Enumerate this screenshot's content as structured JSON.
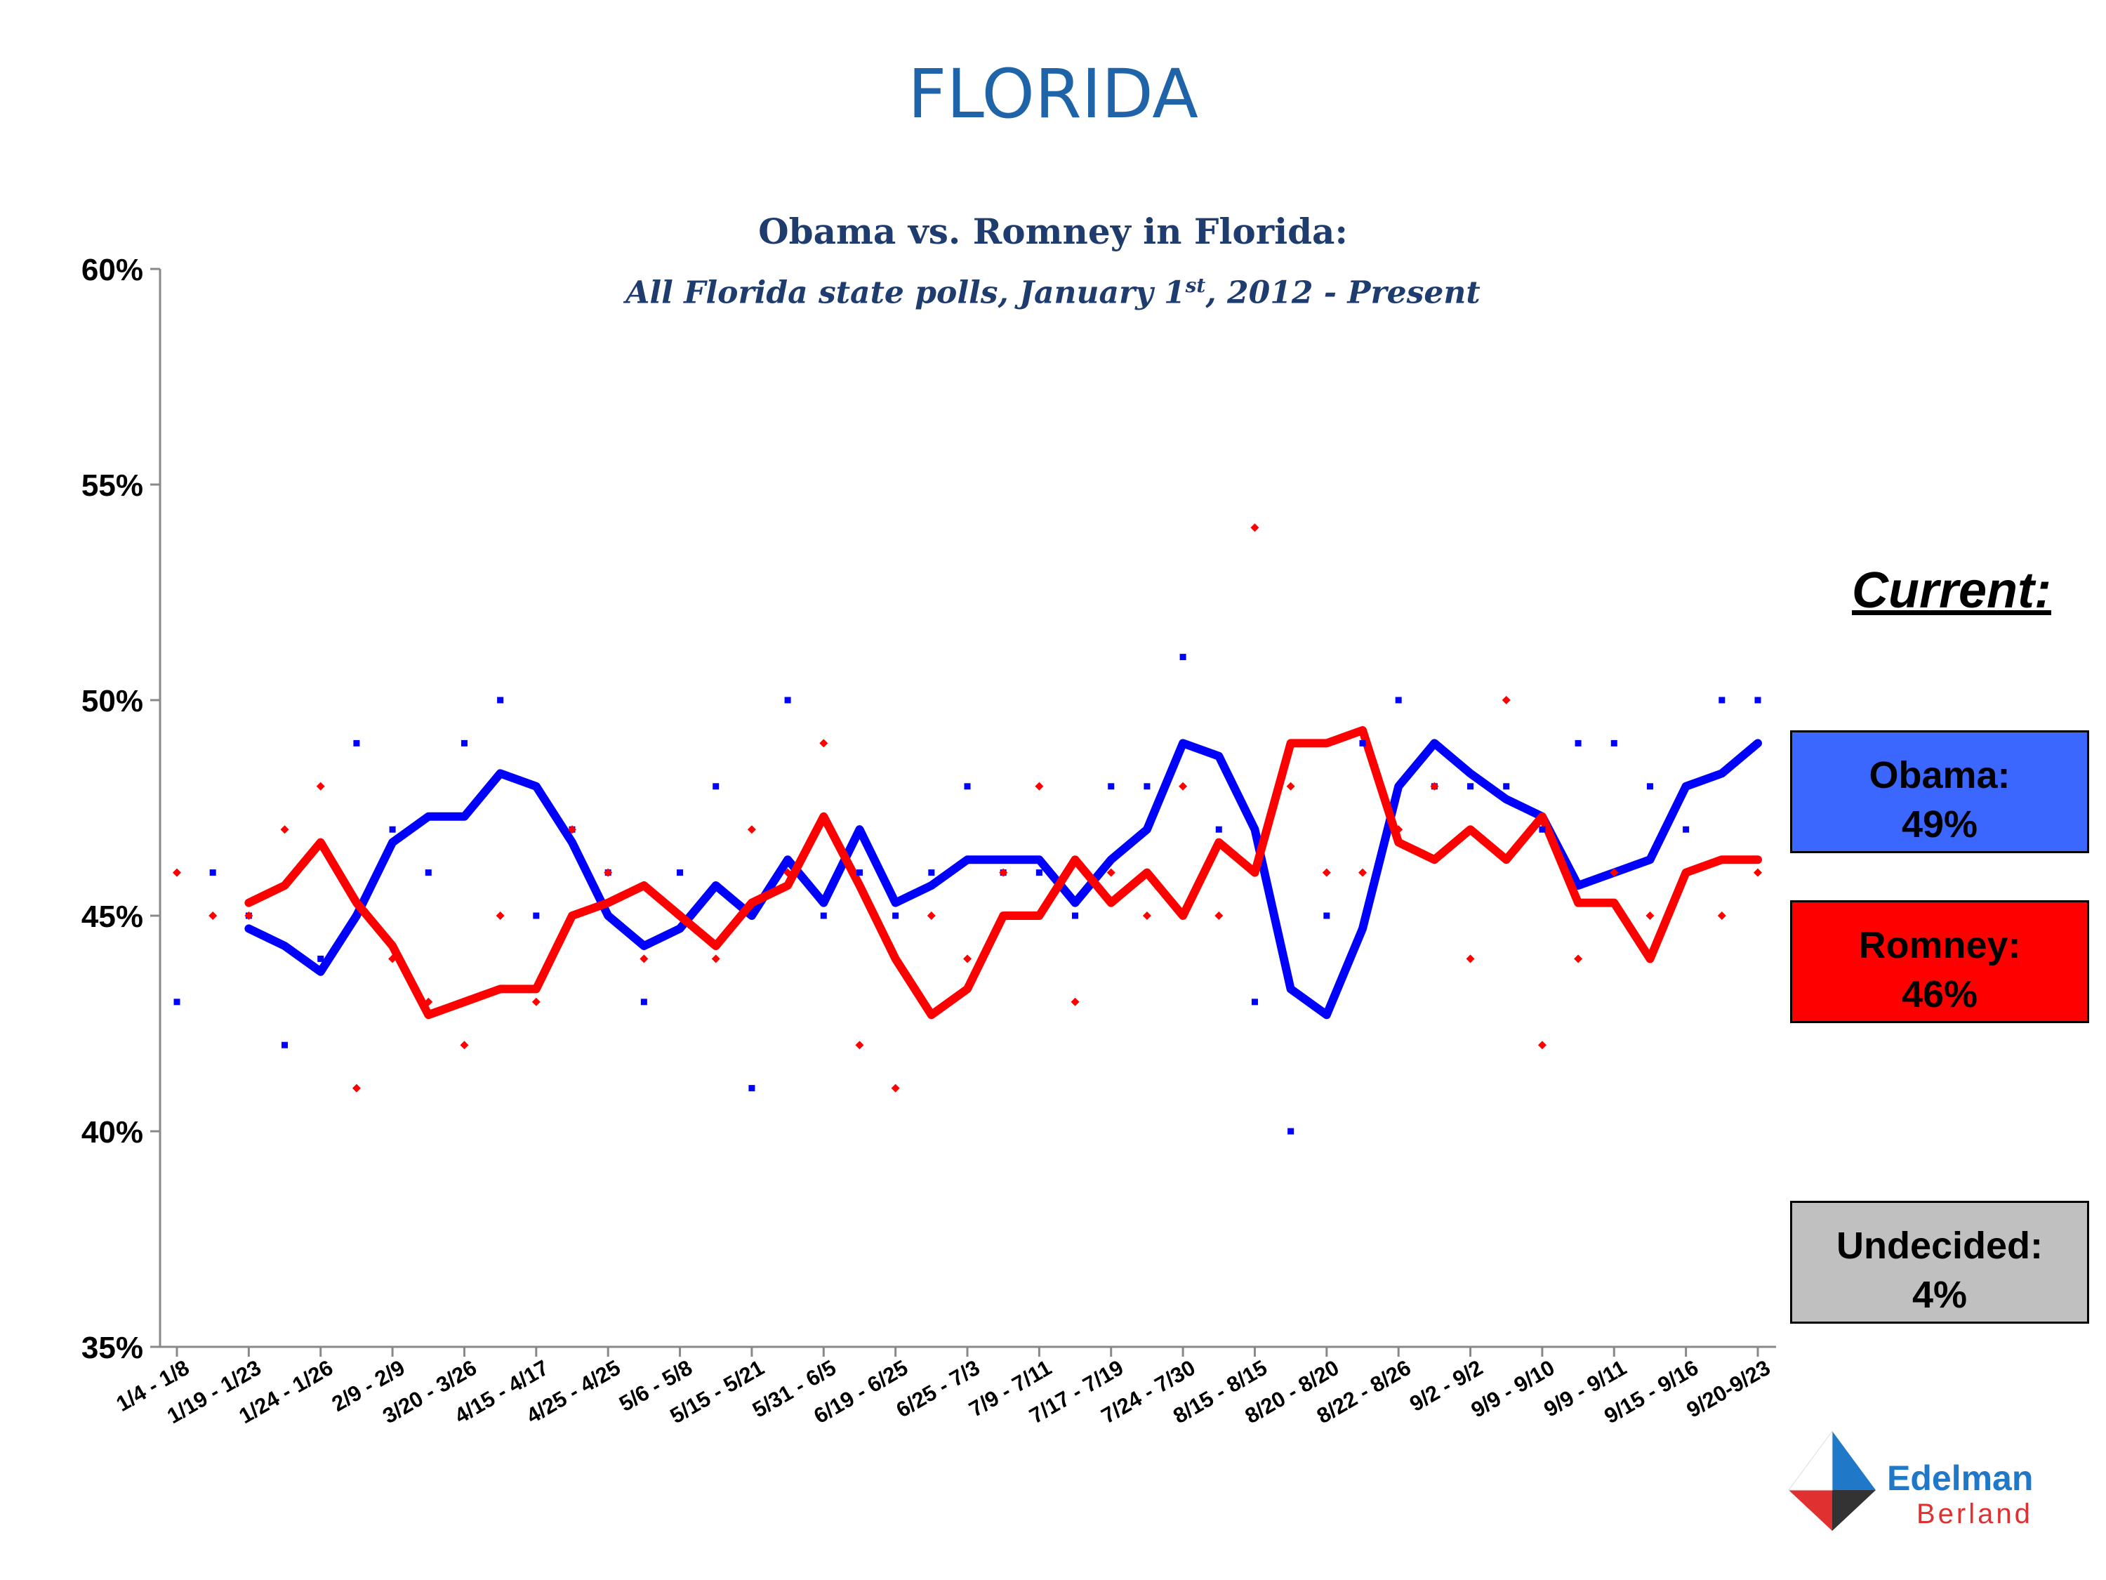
{
  "header": {
    "title": "FLORIDA"
  },
  "chart_data": {
    "type": "line",
    "title": "Obama vs. Romney in Florida:",
    "subtitle_before_sup": "All Florida state polls, January 1",
    "subtitle_sup": "st",
    "subtitle_after_sup": ", 2012 - Present",
    "ylim": [
      35,
      60
    ],
    "yticks": [
      35,
      40,
      45,
      50,
      55,
      60
    ],
    "ytick_labels": [
      "35%",
      "40%",
      "45%",
      "50%",
      "55%",
      "60%"
    ],
    "x_tick_labels": [
      "1/4 - 1/8",
      "1/19 - 1/23",
      "1/24 - 1/26",
      "2/9 - 2/9",
      "3/20 - 3/26",
      "4/15 - 4/17",
      "4/25 - 4/25",
      "5/6 - 5/8",
      "5/15 - 5/21",
      "5/31 - 6/5",
      "6/19 - 6/25",
      "6/25 - 7/3",
      "7/9 - 7/11",
      "7/17 - 7/19",
      "7/24 - 7/30",
      "8/15 - 8/15",
      "8/20 - 8/20",
      "8/22 - 8/26",
      "9/2 - 9/2",
      "9/9 - 9/10",
      "9/9 - 9/11",
      "9/15 - 9/16",
      "9/20-9/23"
    ],
    "n_points": 45,
    "legend": "none",
    "grid": false,
    "series": [
      {
        "color": "#0000ff",
        "style": "line",
        "start_index": 2,
        "values": [
          44.7,
          44.3,
          43.7,
          45.0,
          46.7,
          47.3,
          47.3,
          48.3,
          48.0,
          46.7,
          45.0,
          44.3,
          44.7,
          45.7,
          45.0,
          46.3,
          45.3,
          47.0,
          45.3,
          45.7,
          46.3,
          46.3,
          46.3,
          45.3,
          46.3,
          47.0,
          49.0,
          48.7,
          47.0,
          43.3,
          42.7,
          44.7,
          48.0,
          49.0,
          48.3,
          47.7,
          47.3,
          45.7,
          46.0,
          46.3,
          48.0,
          48.3,
          49.0
        ]
      },
      {
        "color": "#ff0000",
        "style": "line",
        "start_index": 2,
        "values": [
          45.3,
          45.7,
          46.7,
          45.3,
          44.3,
          42.7,
          43.0,
          43.3,
          43.3,
          45.0,
          45.3,
          45.7,
          45.0,
          44.3,
          45.3,
          45.7,
          47.3,
          45.7,
          44.0,
          42.7,
          43.3,
          45.0,
          45.0,
          46.3,
          45.3,
          46.0,
          45.0,
          46.7,
          46.0,
          49.0,
          49.0,
          49.3,
          46.7,
          46.3,
          47.0,
          46.3,
          47.3,
          45.3,
          45.3,
          44.0,
          46.0,
          46.3,
          46.3
        ]
      },
      {
        "color": "#0000ff",
        "style": "markers",
        "values": [
          43,
          46,
          45,
          42,
          44,
          49,
          47,
          46,
          49,
          50,
          45,
          47,
          46,
          43,
          46,
          48,
          41,
          50,
          45,
          46,
          45,
          46,
          48,
          46,
          46,
          45,
          48,
          48,
          51,
          47,
          43,
          40,
          45,
          49,
          50,
          48,
          48,
          48,
          47,
          49,
          49,
          48,
          47,
          50,
          50
        ]
      },
      {
        "color": "#ff0000",
        "style": "markers",
        "values": [
          46,
          45,
          45,
          47,
          48,
          41,
          44,
          43,
          42,
          45,
          43,
          47,
          46,
          44,
          45,
          44,
          47,
          46,
          49,
          42,
          41,
          45,
          44,
          46,
          48,
          43,
          46,
          45,
          48,
          45,
          54,
          48,
          46,
          46,
          47,
          48,
          44,
          50,
          42,
          44,
          46,
          45,
          46,
          45,
          46
        ]
      }
    ]
  },
  "current": {
    "label": "Current:",
    "obama": {
      "name": "Obama:",
      "value": "49%",
      "color": "#3c67ff"
    },
    "romney": {
      "name": "Romney:",
      "value": "46%",
      "color": "#ff0000"
    },
    "undecided": {
      "name": "Undecided:",
      "value": "4%",
      "color": "#c0c0c0"
    }
  },
  "logo": {
    "line1": "Edelman",
    "line2": "Berland"
  }
}
